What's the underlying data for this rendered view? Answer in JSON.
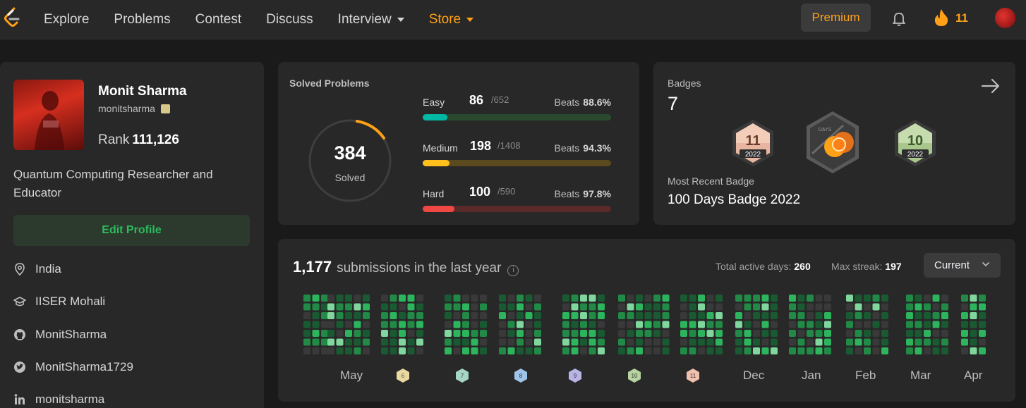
{
  "nav": {
    "links": [
      "Explore",
      "Problems",
      "Contest",
      "Discuss",
      "Interview",
      "Store"
    ],
    "premium": "Premium",
    "streak": "11",
    "accent": "#ffa116"
  },
  "profile": {
    "name": "Monit Sharma",
    "handle": "monitsharma",
    "rank_label": "Rank",
    "rank": "111,126",
    "bio": "Quantum Computing Researcher and Educator",
    "edit": "Edit Profile",
    "location": "India",
    "school": "IISER Mohali",
    "github": "MonitSharma",
    "twitter": "MonitSharma1729",
    "linkedin": "monitsharma"
  },
  "solved": {
    "title": "Solved Problems",
    "total": "384",
    "label": "Solved",
    "difficulties": [
      {
        "name": "Easy",
        "count": "86",
        "total": "/652",
        "beats_label": "Beats",
        "beats": "88.6%",
        "fraction": 0.132,
        "color": "#00b8a3",
        "track": "#2a4a2f"
      },
      {
        "name": "Medium",
        "count": "198",
        "total": "/1408",
        "beats_label": "Beats",
        "beats": "94.3%",
        "fraction": 0.141,
        "color": "#ffc01e",
        "track": "#5a4a1e"
      },
      {
        "name": "Hard",
        "count": "100",
        "total": "/590",
        "beats_label": "Beats",
        "beats": "97.8%",
        "fraction": 0.169,
        "color": "#ef4743",
        "track": "#5a2a2a"
      }
    ]
  },
  "badges": {
    "title": "Badges",
    "count": "7",
    "recent_label": "Most Recent Badge",
    "recent_name": "100 Days Badge 2022",
    "items": [
      {
        "type": "monthly",
        "month": "11",
        "year": "2022"
      },
      {
        "type": "100days",
        "text": "DAYS"
      },
      {
        "type": "monthly",
        "month": "10",
        "year": "2022"
      }
    ]
  },
  "calendar": {
    "count": "1,177",
    "text": "submissions in the last year",
    "active_label": "Total active days:",
    "active": "260",
    "streak_label": "Max streak:",
    "streak": "197",
    "selector": "Current",
    "months": [
      "May",
      "Dec",
      "Jan",
      "Feb",
      "Mar",
      "Apr"
    ],
    "month_badges": [
      "6",
      "7",
      "8",
      "9",
      "10",
      "11"
    ]
  }
}
